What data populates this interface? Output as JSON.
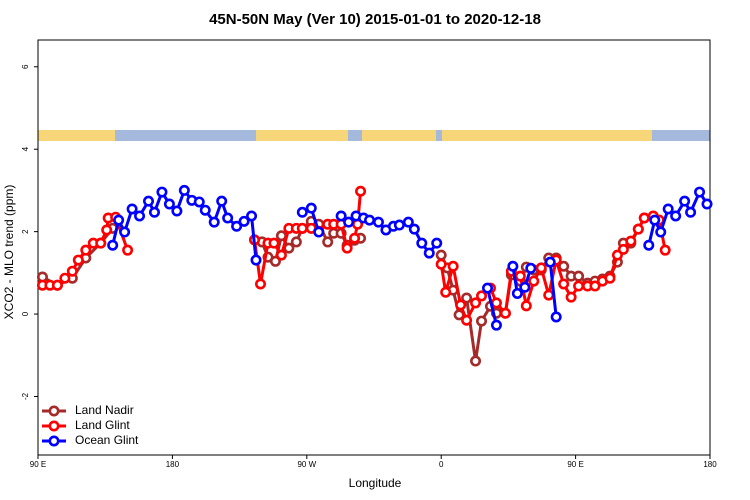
{
  "chart_data": {
    "type": "line",
    "title": "45N-50N May (Ver 10)   2015-01-01 to 2020-12-18",
    "x_label": "Longitude",
    "y_label": "XCO2 - MLO trend (ppm)",
    "xlim": [
      90,
      540
    ],
    "ylim": [
      -3.42,
      6.65
    ],
    "xticks": [
      {
        "value": 90,
        "label": "90 E"
      },
      180,
      {
        "value": 270,
        "label": "90 W"
      },
      {
        "value": 360,
        "label": "0"
      },
      {
        "value": 450,
        "label": "90 E"
      },
      {
        "value": 540,
        "label": "180"
      }
    ],
    "yticks": [
      -2,
      0,
      2,
      4,
      6
    ],
    "legend": "bottom-left",
    "series": [
      {
        "name": "Land Nadir",
        "color": "#a52a2a",
        "x": [
          93,
          103,
          113,
          122,
          132,
          140,
          null,
          235,
          240,
          244,
          249,
          253,
          258,
          263,
          267,
          273,
          278,
          284,
          288,
          293,
          297,
          302,
          306,
          null,
          360,
          364,
          368,
          372,
          377,
          383,
          387,
          393,
          397,
          403,
          407,
          413,
          417,
          422,
          427,
          432,
          437,
          442,
          447,
          452,
          458,
          463,
          468,
          473,
          478,
          482,
          487,
          492,
          496
        ],
        "values": [
          0.9,
          0.7,
          0.87,
          1.36,
          1.72,
          2.08,
          null,
          1.8,
          1.75,
          1.38,
          1.28,
          1.9,
          1.6,
          1.75,
          2.08,
          2.25,
          2.18,
          1.75,
          1.96,
          1.96,
          1.67,
          1.79,
          1.84,
          null,
          1.43,
          1.12,
          0.58,
          -0.02,
          0.39,
          -1.14,
          -0.17,
          0.19,
          0.02,
          0.02,
          0.95,
          0.8,
          1.14,
          1.07,
          1.07,
          1.36,
          1.36,
          1.16,
          0.92,
          0.92,
          0.75,
          0.8,
          0.85,
          0.92,
          1.26,
          1.72,
          1.72,
          2.06,
          2.33
        ]
      },
      {
        "name": "Land Glint",
        "color": "#ff0000",
        "x": [
          93,
          98,
          103,
          108,
          113,
          117,
          122,
          127,
          132,
          136,
          137,
          142,
          150,
          null,
          235,
          239,
          244,
          248,
          253,
          258,
          263,
          267,
          273,
          278,
          284,
          288,
          293,
          297,
          302,
          304,
          306,
          null,
          360,
          363,
          368,
          373,
          377,
          383,
          387,
          393,
          397,
          403,
          407,
          413,
          417,
          422,
          427,
          432,
          437,
          442,
          447,
          452,
          458,
          463,
          468,
          473,
          478,
          482,
          487,
          492,
          496,
          502,
          506,
          510
        ],
        "values": [
          0.7,
          0.7,
          0.7,
          0.87,
          1.04,
          1.31,
          1.55,
          1.72,
          1.72,
          2.04,
          2.33,
          2.35,
          1.55,
          null,
          1.8,
          0.73,
          1.72,
          1.72,
          1.43,
          2.08,
          2.08,
          2.08,
          2.08,
          2.01,
          2.18,
          2.18,
          2.18,
          1.6,
          1.84,
          2.18,
          2.98,
          null,
          1.21,
          0.53,
          1.16,
          0.22,
          -0.15,
          0.27,
          0.44,
          0.63,
          0.27,
          0.02,
          1.04,
          0.92,
          0.2,
          0.8,
          1.12,
          0.46,
          1.31,
          0.73,
          0.41,
          0.68,
          0.68,
          0.68,
          0.8,
          0.87,
          1.43,
          1.57,
          1.77,
          2.06,
          2.33,
          2.38,
          2.28,
          1.55
        ]
      },
      {
        "name": "Ocean Glint",
        "color": "#0000ff",
        "x": [
          140,
          144,
          148,
          153,
          158,
          164,
          168,
          173,
          178,
          183,
          188,
          193,
          198,
          202,
          208,
          213,
          217,
          223,
          228,
          233,
          236,
          null,
          267,
          273,
          278,
          null,
          293,
          298,
          303,
          308,
          312,
          318,
          323,
          328,
          332,
          338,
          342,
          347,
          352,
          357,
          null,
          391,
          397,
          null,
          408,
          411,
          416,
          420,
          null,
          433,
          437,
          null,
          499,
          503,
          507,
          512,
          517,
          523,
          527,
          533,
          538
        ],
        "values": [
          1.67,
          2.28,
          1.99,
          2.55,
          2.38,
          2.74,
          2.47,
          2.96,
          2.67,
          2.5,
          3.0,
          2.76,
          2.72,
          2.52,
          2.23,
          2.74,
          2.33,
          2.13,
          2.25,
          2.38,
          1.31,
          null,
          2.47,
          2.57,
          1.99,
          null,
          2.38,
          2.23,
          2.38,
          2.33,
          2.28,
          2.23,
          2.04,
          2.13,
          2.16,
          2.23,
          2.06,
          1.72,
          1.48,
          1.72,
          null,
          0.63,
          -0.27,
          null,
          1.16,
          0.5,
          0.65,
          1.11,
          null,
          1.26,
          -0.07,
          null,
          1.67,
          2.28,
          1.99,
          2.55,
          2.38,
          2.74,
          2.47,
          2.96,
          2.67
        ]
      }
    ]
  }
}
